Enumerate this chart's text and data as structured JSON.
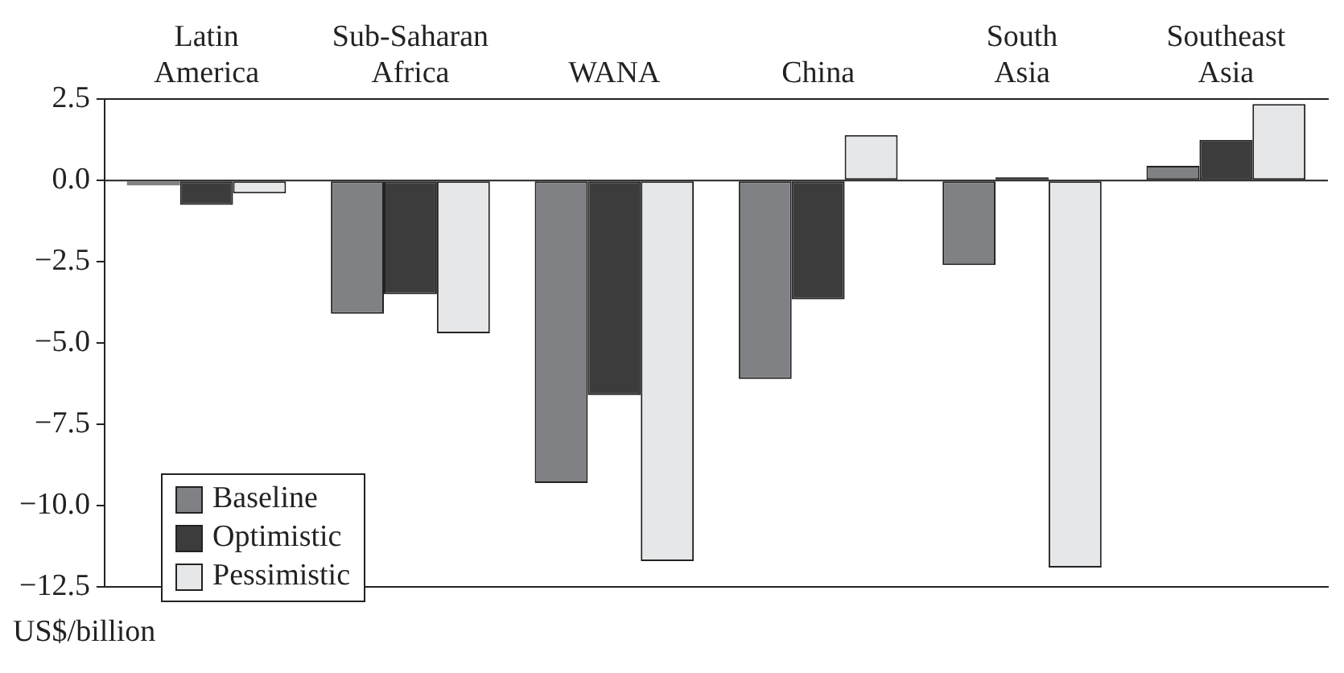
{
  "chart_data": {
    "type": "bar",
    "ylabel": "US$/billion",
    "categories": [
      "Latin America",
      "Sub-Saharan Africa",
      "WANA",
      "China",
      "South Asia",
      "Southeast Asia"
    ],
    "series": [
      {
        "name": "Baseline",
        "color": "#808184",
        "values": [
          -0.15,
          -4.1,
          -9.3,
          -6.1,
          -2.6,
          0.45
        ]
      },
      {
        "name": "Optimistic",
        "color": "#3c3c3c",
        "values": [
          -0.75,
          -3.5,
          -6.6,
          -3.65,
          0.1,
          1.25
        ]
      },
      {
        "name": "Pessimistic",
        "color": "#e6e7e8",
        "values": [
          -0.4,
          -4.7,
          -11.7,
          1.4,
          -11.9,
          2.35
        ]
      }
    ],
    "ylim": [
      -12.5,
      2.5
    ],
    "yticks": [
      {
        "value": 2.5,
        "label": "2.5"
      },
      {
        "value": 0,
        "label": "0.0"
      },
      {
        "value": -2.5,
        "label": "−2.5"
      },
      {
        "value": -5,
        "label": "−5.0"
      },
      {
        "value": -7.5,
        "label": "−7.5"
      },
      {
        "value": -10,
        "label": "−10.0"
      },
      {
        "value": -12.5,
        "label": "−12.5"
      }
    ],
    "ref_lines": [
      {
        "axis": "y",
        "value": 0,
        "color": "#222222"
      }
    ],
    "grid": false,
    "legend": "bottom left"
  }
}
